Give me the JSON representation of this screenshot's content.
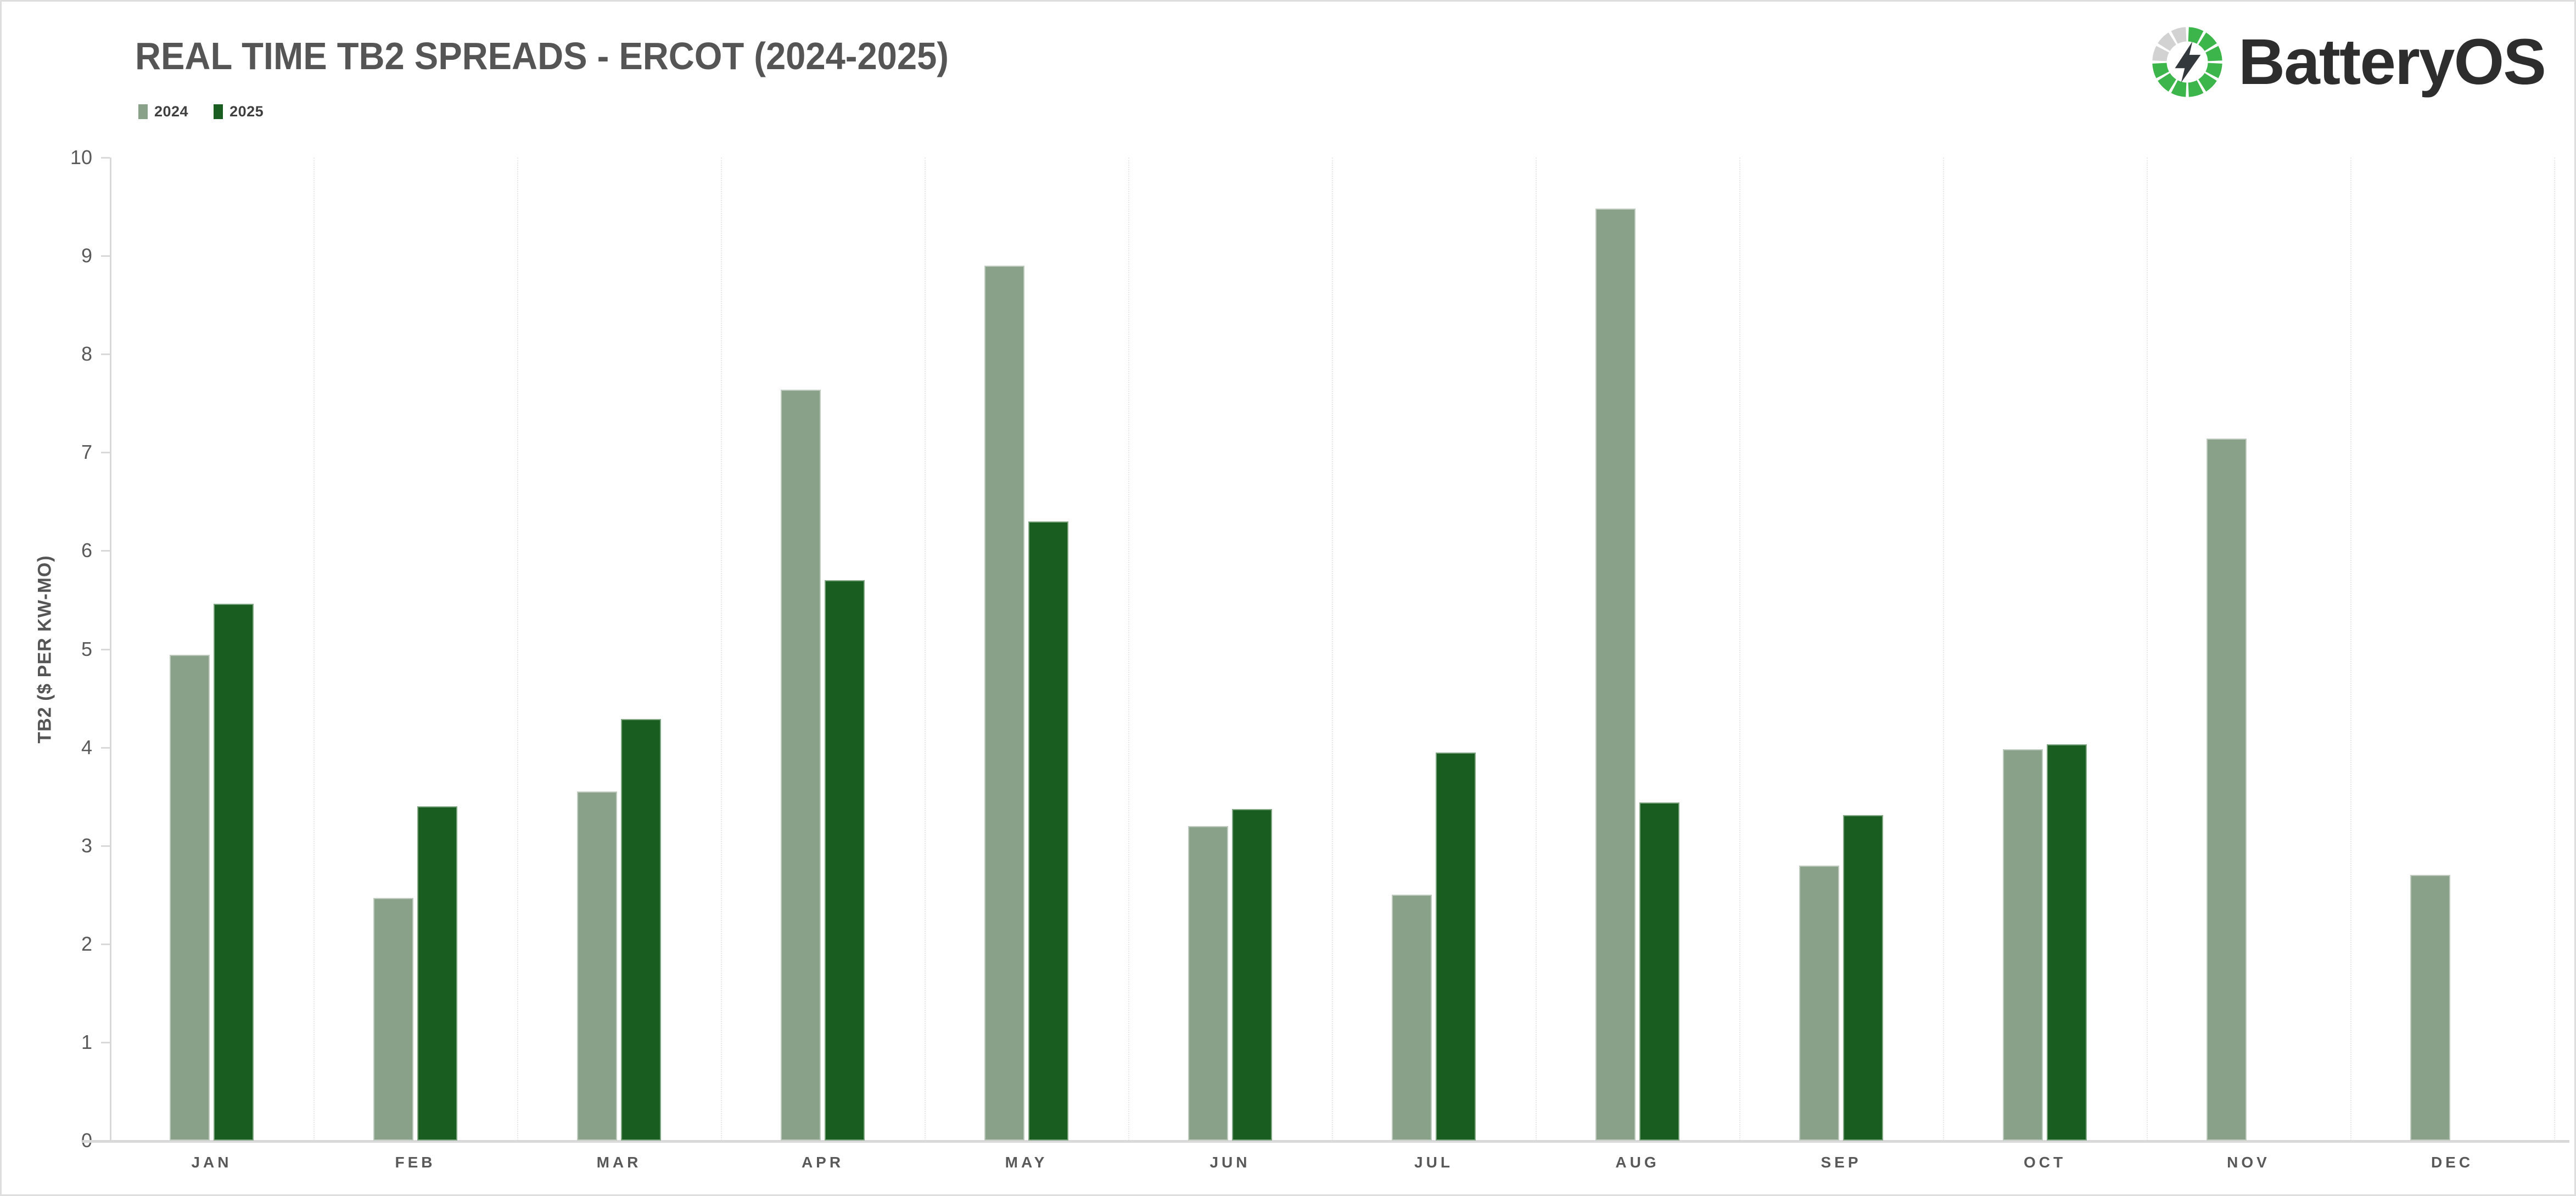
{
  "header": {
    "title": "REAL TIME TB2 SPREADS - ERCOT (2024-2025)"
  },
  "brand": {
    "name": "BatteryOS",
    "logo_green": "#3cb54a",
    "logo_gray": "#d2d2d2",
    "bolt_color": "#33383c",
    "text_color": "#2d2d2d"
  },
  "axis_colors": {
    "axis_line": "#d9d9d9",
    "grid": "#e7e7e7",
    "tick_text": "#595959"
  },
  "chart_data": {
    "type": "bar",
    "title": "REAL TIME TB2 SPREADS - ERCOT (2024-2025)",
    "categories": [
      "JAN",
      "FEB",
      "MAR",
      "APR",
      "MAY",
      "JUN",
      "JUL",
      "AUG",
      "SEP",
      "OCT",
      "NOV",
      "DEC"
    ],
    "series": [
      {
        "name": "2024",
        "color": "#8aa189",
        "values": [
          4.94,
          2.47,
          3.55,
          7.64,
          8.9,
          3.2,
          2.5,
          9.48,
          2.8,
          3.98,
          7.14,
          2.7
        ]
      },
      {
        "name": "2025",
        "color": "#1a5d20",
        "values": [
          5.46,
          3.4,
          4.29,
          5.7,
          6.3,
          3.37,
          3.95,
          3.44,
          3.31,
          4.03,
          null,
          null
        ]
      }
    ],
    "xlabel": "",
    "ylabel": "TB2 ($ PER KW-MO)",
    "ylim": [
      0,
      10
    ],
    "ytick_step": 1,
    "grid": "vertical category separators, dotted",
    "legend_position": "top-left"
  }
}
